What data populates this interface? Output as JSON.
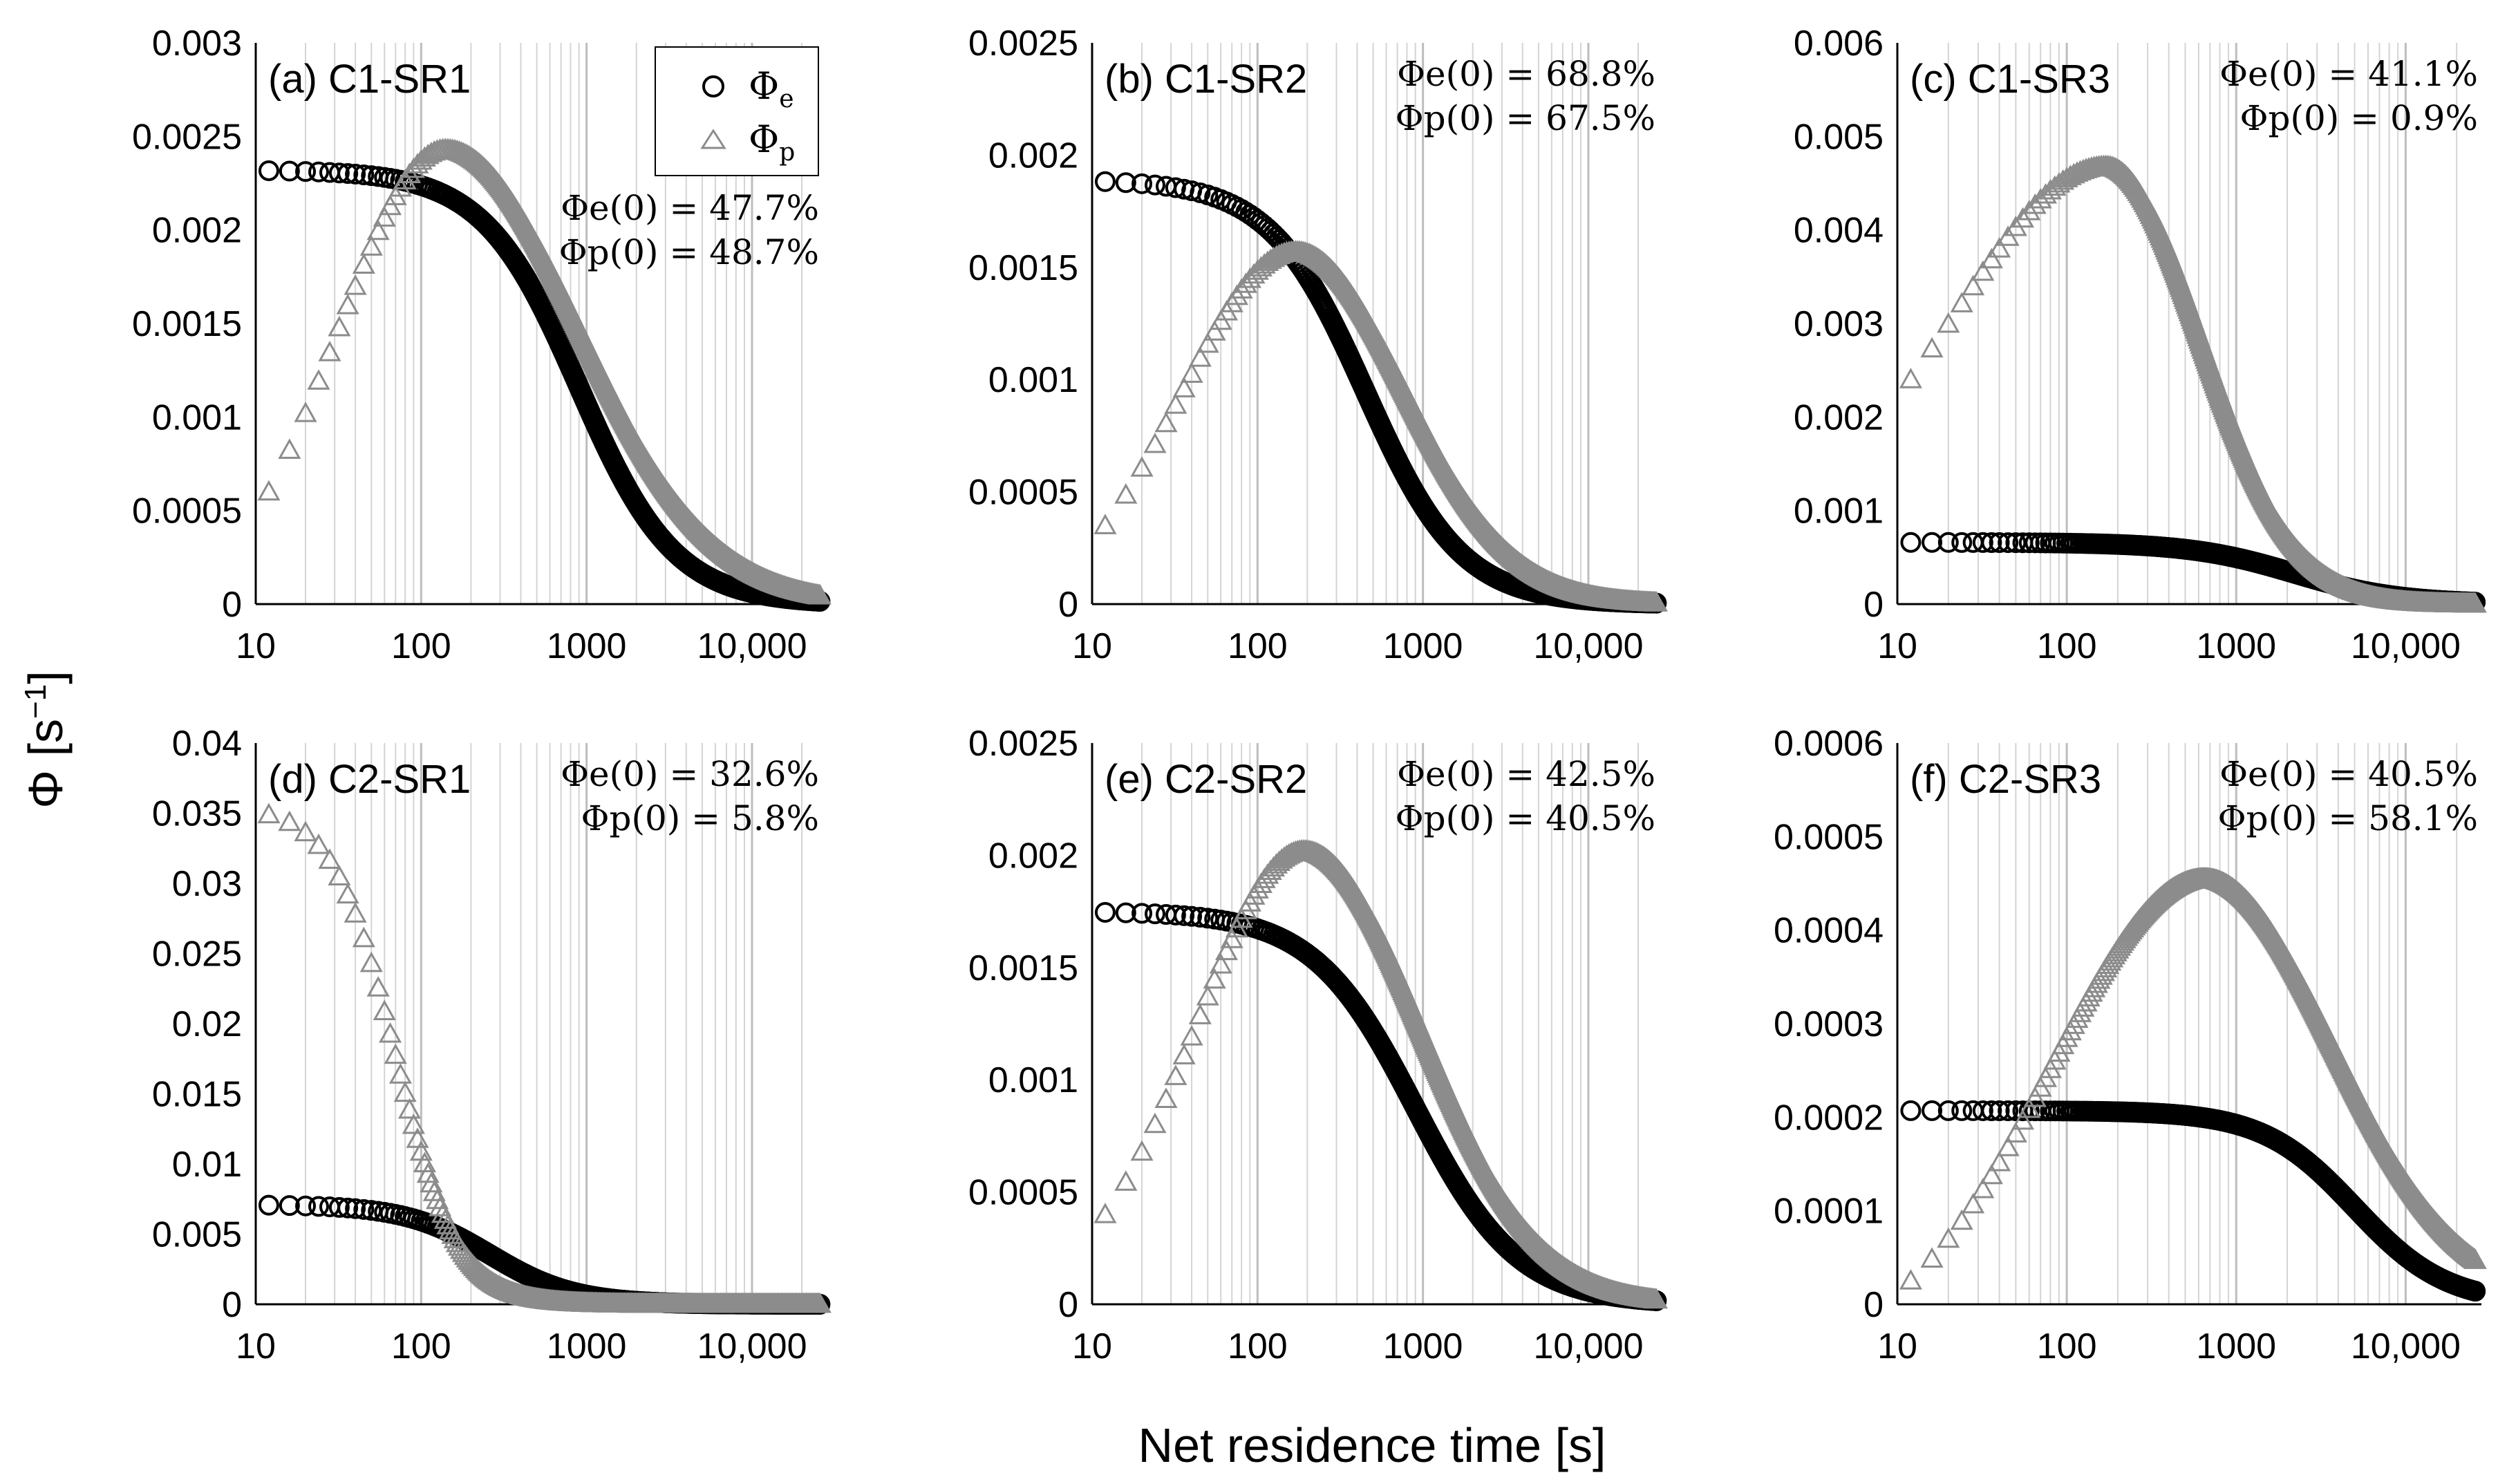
{
  "figure": {
    "ylabel": "Φ  [s",
    "ylabel_exp": "−1",
    "ylabel_close": "]",
    "xlabel": "Net residence time  [s]",
    "legend": {
      "phi_e": "Φ",
      "phi_e_sub": "e",
      "phi_p": "Φ",
      "phi_p_sub": "p"
    },
    "colors": {
      "phi_e": "#000000",
      "phi_p": "#8c8c8c",
      "grid": "#d4d4d4",
      "axis": "#000000"
    }
  },
  "chart_data": [
    {
      "type": "scatter",
      "id": "a",
      "title": "(a) C1-SR1",
      "xscale": "log",
      "xlim": [
        10,
        28000
      ],
      "ylim": [
        0,
        0.003
      ],
      "yticks": [
        "0",
        "0.0005",
        "0.001",
        "0.0015",
        "0.002",
        "0.0025",
        "0.003"
      ],
      "xticks": [
        "10",
        "100",
        "1000",
        "10,000"
      ],
      "annotations": [
        "Φe(0) = 47.7%",
        "Φp(0) = 48.7%"
      ],
      "series": [
        {
          "name": "Φe",
          "marker": "circle",
          "params": {
            "A": 0.00232,
            "tau": 900,
            "n": 1.5
          }
        },
        {
          "name": "Φp",
          "marker": "triangle",
          "params": {
            "peak": 0.00243,
            "t_peak": 140,
            "sigma_left": 0.65,
            "sigma_right": 0.8,
            "start": 12,
            "start_value": 0.0006
          }
        }
      ]
    },
    {
      "type": "scatter",
      "id": "b",
      "title": "(b) C1-SR2",
      "xscale": "log",
      "xlim": [
        10,
        28000
      ],
      "ylim": [
        0,
        0.0025
      ],
      "yticks": [
        "0",
        "0.0005",
        "0.001",
        "0.0015",
        "0.002",
        "0.0025"
      ],
      "xticks": [
        "10",
        "100",
        "1000",
        "10,000"
      ],
      "annotations": [
        "Φe(0) = 68.8%",
        "Φp(0) = 67.5%"
      ],
      "series": [
        {
          "name": "Φe",
          "marker": "circle",
          "params": {
            "A": 0.00189,
            "tau": 450,
            "n": 1.5
          }
        },
        {
          "name": "Φp",
          "marker": "triangle",
          "params": {
            "peak": 0.00157,
            "t_peak": 170,
            "sigma_left": 0.7,
            "sigma_right": 0.65,
            "start": 12,
            "start_value": 0.00035
          }
        }
      ]
    },
    {
      "type": "scatter",
      "id": "c",
      "title": "(c) C1-SR3",
      "xscale": "log",
      "xlim": [
        10,
        28000
      ],
      "ylim": [
        0,
        0.006
      ],
      "yticks": [
        "0",
        "0.001",
        "0.002",
        "0.003",
        "0.004",
        "0.005",
        "0.006"
      ],
      "xticks": [
        "10",
        "100",
        "1000",
        "10,000"
      ],
      "annotations": [
        "Φe(0) = 41.1%",
        "Φp(0) = 0.9%"
      ],
      "series": [
        {
          "name": "Φe",
          "marker": "circle",
          "params": {
            "A": 0.00066,
            "tau": 2200,
            "n": 1.4
          }
        },
        {
          "name": "Φp",
          "marker": "triangle",
          "params": {
            "peak": 0.00468,
            "t_peak": 170,
            "sigma_left": 0.9,
            "sigma_right": 0.55,
            "start": 12,
            "start_value": 0.0024
          }
        }
      ]
    },
    {
      "type": "scatter",
      "id": "d",
      "title": "(d) C2-SR1",
      "xscale": "log",
      "xlim": [
        10,
        28000
      ],
      "ylim": [
        0,
        0.04
      ],
      "yticks": [
        "0",
        "0.005",
        "0.01",
        "0.015",
        "0.02",
        "0.025",
        "0.03",
        "0.035",
        "0.04"
      ],
      "xticks": [
        "10",
        "100",
        "1000",
        "10,000"
      ],
      "annotations": [
        "Φe(0) = 32.6%",
        "Φp(0) = 5.8%"
      ],
      "series": [
        {
          "name": "Φe",
          "marker": "circle",
          "params": {
            "A": 0.0071,
            "tau": 260,
            "n": 1.7
          }
        },
        {
          "name": "Φp",
          "marker": "triangle",
          "params": {
            "A": 0.0355,
            "tau": 70,
            "n": 2.3,
            "mode": "decay"
          }
        }
      ]
    },
    {
      "type": "scatter",
      "id": "e",
      "title": "(e) C2-SR2",
      "xscale": "log",
      "xlim": [
        10,
        28000
      ],
      "ylim": [
        0,
        0.0025
      ],
      "yticks": [
        "0",
        "0.0005",
        "0.001",
        "0.0015",
        "0.002",
        "0.0025"
      ],
      "xticks": [
        "10",
        "100",
        "1000",
        "10,000"
      ],
      "annotations": [
        "Φe(0) = 42.5%",
        "Φp(0) = 40.5%"
      ],
      "series": [
        {
          "name": "Φe",
          "marker": "circle",
          "params": {
            "A": 0.00175,
            "tau": 900,
            "n": 1.4
          }
        },
        {
          "name": "Φp",
          "marker": "triangle",
          "params": {
            "peak": 0.00202,
            "t_peak": 190,
            "sigma_left": 0.65,
            "sigma_right": 0.7,
            "start": 12,
            "start_value": 0.0004
          }
        }
      ]
    },
    {
      "type": "scatter",
      "id": "f",
      "title": "(f) C2-SR3",
      "xscale": "log",
      "xlim": [
        10,
        28000
      ],
      "ylim": [
        0,
        0.0006
      ],
      "yticks": [
        "0",
        "0.0001",
        "0.0002",
        "0.0003",
        "0.0004",
        "0.0005",
        "0.0006"
      ],
      "xticks": [
        "10",
        "100",
        "1000",
        "10,000"
      ],
      "annotations": [
        "Φe(0) = 40.5%",
        "Φp(0) = 58.1%"
      ],
      "series": [
        {
          "name": "Φe",
          "marker": "circle",
          "params": {
            "A": 0.000207,
            "tau": 5000,
            "n": 1.6
          }
        },
        {
          "name": "Φp",
          "marker": "triangle",
          "params": {
            "peak": 0.000455,
            "t_peak": 650,
            "sigma_left": 0.9,
            "sigma_right": 0.75,
            "start": 12,
            "start_value": 2.5e-05
          }
        }
      ]
    }
  ]
}
